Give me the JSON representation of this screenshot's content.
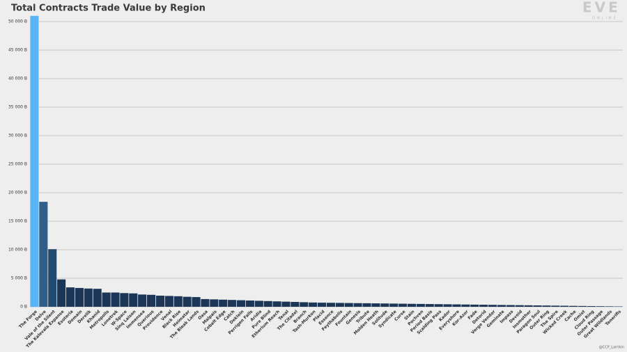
{
  "chart_data": {
    "type": "bar",
    "title": "Total Contracts Trade Value by Region",
    "logo": "EVE",
    "logo_sub": "ONLINE",
    "credit": "@CCP_Larrikin",
    "categories": [
      "The Forge",
      "Delve",
      "Vale of the Silent",
      "The Kalevala Expanse",
      "Esoteria",
      "Domain",
      "Derelik",
      "Khanid",
      "Metropolis",
      "Lonetrek",
      "W-Space",
      "Sinq Laison",
      "Immensea",
      "Querious",
      "Providence",
      "Venal",
      "Black Rise",
      "Heimatar",
      "The Bleak Lands",
      "Oasa",
      "Malpais",
      "Cobalt Edge",
      "Catch",
      "Deklein",
      "Perrigen Falls",
      "Aridia",
      "Pure Blind",
      "Etherium Reach",
      "Tenal",
      "The Citadel",
      "Branch",
      "Tash-Murkon",
      "Placid",
      "Essence",
      "Feythabolis",
      "Fountain",
      "Genesis",
      "Tribute",
      "Molden Heath",
      "Solitude",
      "Syndicate",
      "Curse",
      "Stain",
      "Pochven",
      "Period Basis",
      "Scalding Pass",
      "Kador",
      "Everyshore",
      "Kor-Azor",
      "Fade",
      "Detorid",
      "Verge Vendor",
      "Geminate",
      "Impass",
      "Devoid",
      "Insmother",
      "Paragon Soul",
      "Outer Ring",
      "The Spire",
      "Wicked Creek",
      "Cache",
      "Omist",
      "Cloud Ring",
      "Outer Passage",
      "Great Wildlands",
      "Tenerifis"
    ],
    "values": [
      51000,
      18400,
      10100,
      4800,
      3400,
      3300,
      3200,
      3150,
      2500,
      2500,
      2400,
      2350,
      2150,
      2100,
      1950,
      1900,
      1850,
      1750,
      1700,
      1350,
      1300,
      1250,
      1200,
      1150,
      1100,
      1050,
      1000,
      950,
      900,
      850,
      800,
      750,
      720,
      700,
      680,
      660,
      640,
      620,
      600,
      580,
      560,
      540,
      520,
      500,
      480,
      460,
      440,
      420,
      400,
      380,
      360,
      340,
      320,
      300,
      280,
      260,
      240,
      220,
      200,
      180,
      160,
      140,
      120,
      100,
      80,
      60
    ],
    "color": "#1b3656",
    "highlight_colors": [
      "#5ab4f5",
      "#2e5e89",
      "#23496f"
    ],
    "ylim": [
      0,
      51000
    ],
    "yticks": [
      {
        "value": 0,
        "label": "0 B"
      },
      {
        "value": 5000,
        "label": "5 000 B"
      },
      {
        "value": 10000,
        "label": "10 000 B"
      },
      {
        "value": 15000,
        "label": "15 000 B"
      },
      {
        "value": 20000,
        "label": "20 000 B"
      },
      {
        "value": 25000,
        "label": "25 000 B"
      },
      {
        "value": 30000,
        "label": "30 000 B"
      },
      {
        "value": 35000,
        "label": "35 000 B"
      },
      {
        "value": 40000,
        "label": "40 000 B"
      },
      {
        "value": 45000,
        "label": "45 000 B"
      },
      {
        "value": 50000,
        "label": "50 000 B"
      }
    ],
    "grid": true
  }
}
